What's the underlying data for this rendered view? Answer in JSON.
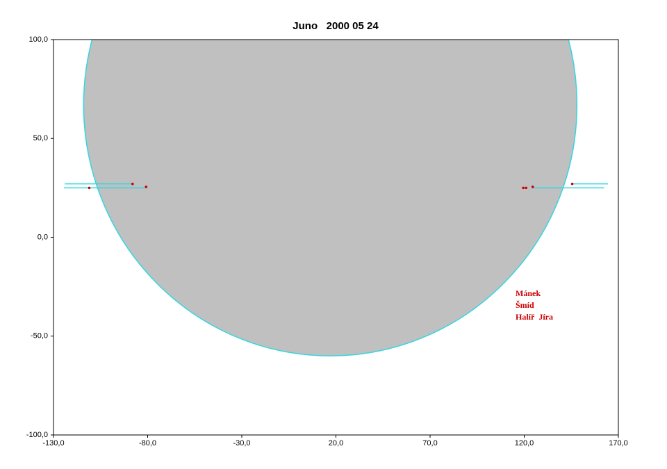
{
  "chart_data": {
    "type": "occultation",
    "title": "Juno   2000 05 24",
    "xlim": [
      -130,
      170
    ],
    "xticks": [
      {
        "value": -130,
        "label": "-130,0"
      },
      {
        "value": -80,
        "label": "-80,0"
      },
      {
        "value": -30,
        "label": "-30,0"
      },
      {
        "value": 20,
        "label": "20,0"
      },
      {
        "value": 70,
        "label": "70,0"
      },
      {
        "value": 120,
        "label": "120,0"
      },
      {
        "value": 170,
        "label": "170,0"
      }
    ],
    "ylim": [
      -100,
      100
    ],
    "yticks": [
      {
        "value": -100,
        "label": "-100,0"
      },
      {
        "value": -50,
        "label": "-50,0"
      },
      {
        "value": 0,
        "label": "0,0"
      },
      {
        "value": 50,
        "label": "50,0"
      },
      {
        "value": 100,
        "label": "100,0"
      }
    ],
    "profile": {
      "cx": 17,
      "cy": 67,
      "rx": 131,
      "ry": 127,
      "fill": "#c0c0c0",
      "stroke": "#33d6e0"
    },
    "chords": {
      "color": "#33d6e0",
      "lines": [
        {
          "x": [
            -124,
            -88
          ],
          "y": 27
        },
        {
          "x": [
            -124.5,
            -81
          ],
          "y": 25
        },
        {
          "x": [
            145.5,
            164.5
          ],
          "y": 27
        },
        {
          "x": [
            124,
            162.5
          ],
          "y": 25
        }
      ]
    },
    "points": {
      "color": "#cc0000",
      "x": [
        -111,
        -88,
        -80.8,
        119.5,
        121,
        124.5,
        145.5
      ],
      "y": [
        25,
        27,
        25.5,
        25,
        25,
        25.5,
        27
      ]
    },
    "annotations": [
      "Mánek",
      "Šmíd",
      "Halíř  Jíra"
    ],
    "annotation_color": "#cc0000"
  }
}
